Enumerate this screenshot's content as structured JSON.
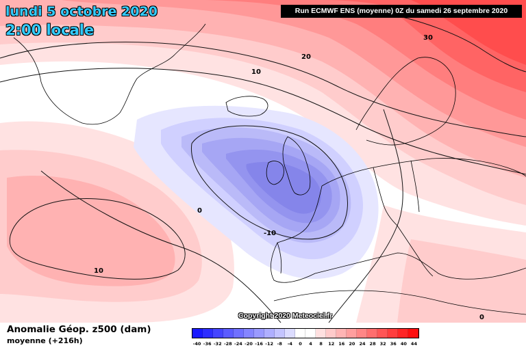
{
  "header": {
    "date": "lundi 5 octobre 2020",
    "time": "2:00 locale",
    "run": "Run ECMWF ENS (moyenne) 0Z du samedi 26 septembre 2020"
  },
  "copyright": "Copyright 2020 Meteociel.fr",
  "footer": {
    "parameter": "Anomalie Géop. z500 (dam)",
    "subtitle": "moyenne   (+216h)"
  },
  "contour_labels": [
    "30",
    "20",
    "10",
    "0",
    "-10",
    "10",
    "0"
  ],
  "colorbar": {
    "ticks": [
      "-40",
      "-36",
      "-32",
      "-28",
      "-24",
      "-20",
      "-16",
      "-12",
      "-8",
      "-4",
      "0",
      "4",
      "8",
      "12",
      "16",
      "20",
      "24",
      "28",
      "32",
      "36",
      "40",
      "44"
    ],
    "colors": [
      "#1a1aff",
      "#2e2eff",
      "#4545ff",
      "#5c5cff",
      "#7070ff",
      "#8585ff",
      "#9a9aff",
      "#afafff",
      "#c4c4ff",
      "#dcdcff",
      "#ffffff",
      "#ffffff",
      "#ffe0e0",
      "#ffcaca",
      "#ffb4b4",
      "#ff9e9e",
      "#ff8686",
      "#ff6e6e",
      "#ff5656",
      "#ff3e3e",
      "#ff2626",
      "#ff0f0f"
    ]
  },
  "colors": {
    "date_text": "#33ccff",
    "low_core": "#8c8cf0",
    "high_core": "#ff4d4d"
  }
}
